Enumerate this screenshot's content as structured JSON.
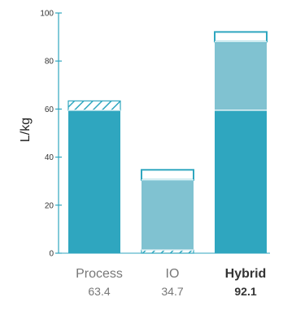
{
  "chart_data": {
    "type": "bar",
    "stacked": true,
    "ylabel": "L/kg",
    "ylim": [
      0,
      100
    ],
    "yticks": [
      0,
      20,
      40,
      60,
      80,
      100
    ],
    "grid": false,
    "categories": [
      "Process",
      "IO",
      "Hybrid"
    ],
    "totals": [
      "63.4",
      "34.7",
      "92.1"
    ],
    "emphasized_category": "Hybrid",
    "segments": [
      {
        "color": "#2fa6bf",
        "pattern": "solid",
        "values": [
          59.5,
          0,
          59.5
        ]
      },
      {
        "color": "#2fa6bf",
        "pattern": "hatched",
        "values": [
          3.9,
          1.3,
          0
        ]
      },
      {
        "color": "#80c2d1",
        "pattern": "solid",
        "values": [
          0,
          29.2,
          28.6
        ]
      },
      {
        "color": "#ffffff",
        "pattern": "outline",
        "values": [
          0,
          4.2,
          4.0
        ]
      }
    ],
    "colors": {
      "axis": "#2fa6bf",
      "outline": "#2fa6bf",
      "hatch": "#2fa6bf"
    }
  }
}
